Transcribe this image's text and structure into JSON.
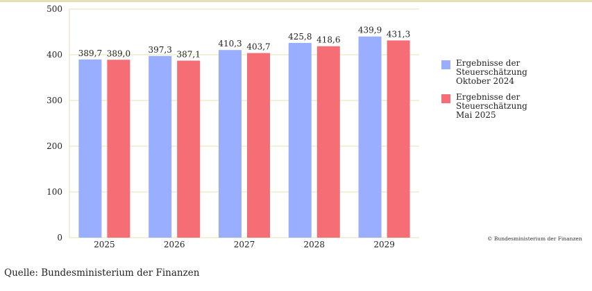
{
  "chart_data": {
    "type": "bar",
    "categories": [
      "2025",
      "2026",
      "2027",
      "2028",
      "2029"
    ],
    "series": [
      {
        "name": "Ergebnisse der Steuerschätzung\nOktober 2024",
        "color": "#99aeff",
        "values": [
          389.7,
          397.3,
          410.3,
          425.8,
          439.9
        ],
        "labels": [
          "389,7",
          "397,3",
          "410,3",
          "425,8",
          "439,9"
        ]
      },
      {
        "name": "Ergebnisse der Steuerschätzung\nMai 2025",
        "color": "#f56e75",
        "values": [
          389.0,
          387.1,
          403.7,
          418.6,
          431.3
        ],
        "labels": [
          "389,0",
          "387,1",
          "403,7",
          "418,6",
          "431,3"
        ]
      }
    ],
    "ylim": [
      0,
      500
    ],
    "yticks": [
      0,
      100,
      200,
      300,
      400,
      500
    ],
    "grid": true,
    "legend_position": "right"
  },
  "copyright": "© Bundesministerium der Finanzen",
  "source": "Quelle: Bundesministerium der Finanzen"
}
